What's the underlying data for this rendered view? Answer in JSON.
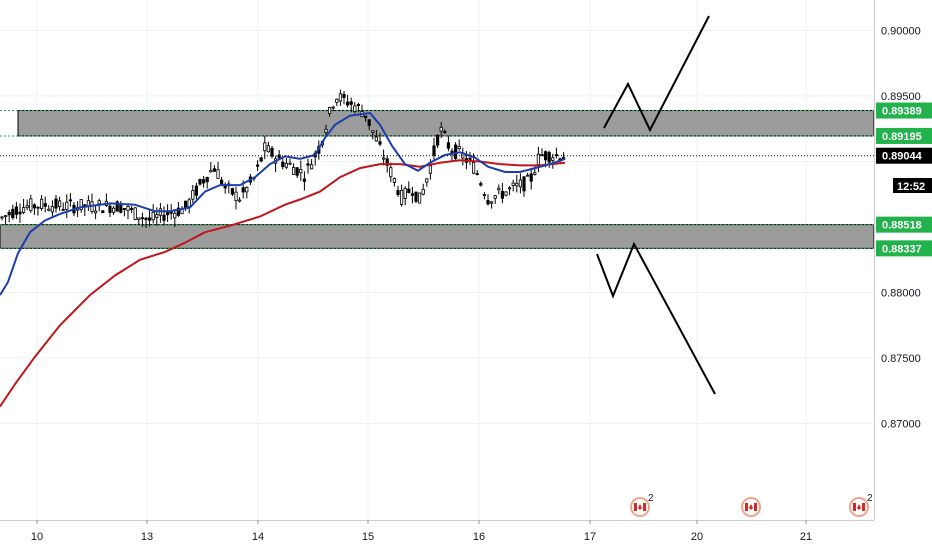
{
  "chart_data": {
    "type": "candlestick",
    "y_axis": {
      "ticks": [
        "0.90000",
        "0.89500",
        "0.88500",
        "0.88000",
        "0.87500",
        "0.87000"
      ],
      "range": [
        0.8655,
        0.9012
      ]
    },
    "x_axis": {
      "ticks": [
        "10",
        "13",
        "14",
        "15",
        "16",
        "17",
        "20",
        "21"
      ]
    },
    "zones": [
      {
        "name": "resistance",
        "top": 0.89389,
        "bottom": 0.89195
      },
      {
        "name": "support",
        "top": 0.88518,
        "bottom": 0.88337
      }
    ],
    "price_labels": [
      {
        "text": "0.89389",
        "value": 0.89389,
        "color": "#21b24b"
      },
      {
        "text": "0.89195",
        "value": 0.89195,
        "color": "#21b24b"
      },
      {
        "text": "0.89044",
        "value": 0.89044,
        "color": "#000000"
      },
      {
        "text": "0.88518",
        "value": 0.88518,
        "color": "#21b24b"
      },
      {
        "text": "0.88337",
        "value": 0.88337,
        "color": "#21b24b"
      }
    ],
    "countdown": "12:52",
    "last_price": 0.89044,
    "event_badges": [
      {
        "count": "2"
      },
      {
        "count": ""
      },
      {
        "count": "2"
      }
    ],
    "colors": {
      "zone_fill": "#9c9c9c",
      "zone_border": "#21b24b",
      "ma_fast": "#1c3fae",
      "ma_slow": "#c0161c",
      "candle": "#000000",
      "grid": "#eef0f3"
    }
  }
}
